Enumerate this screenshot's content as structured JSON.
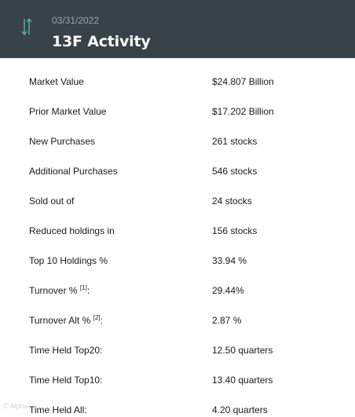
{
  "header": {
    "date": "03/31/2022",
    "title": "13F Activity",
    "icon": "vertical-arrows-icon",
    "icon_color": "#5fb3a0",
    "background": "#37424a"
  },
  "rows": [
    {
      "label": "Market Value",
      "footnote": "",
      "value": " $24.807 Billion"
    },
    {
      "label": "Prior Market Value",
      "footnote": "",
      "value": " $17.202 Billion"
    },
    {
      "label": "New Purchases",
      "footnote": "",
      "value": "261 stocks"
    },
    {
      "label": "Additional Purchases",
      "footnote": "",
      "value": "546 stocks"
    },
    {
      "label": "Sold out of",
      "footnote": "",
      "value": "24 stocks"
    },
    {
      "label": "Reduced holdings in",
      "footnote": "",
      "value": "156 stocks"
    },
    {
      "label": "Top 10 Holdings %",
      "footnote": "",
      "value": " 33.94 %"
    },
    {
      "label": "Turnover % ",
      "footnote": "[1]",
      "suffix": ":",
      "value": "29.44%"
    },
    {
      "label": "Turnover Alt % ",
      "footnote": "[2]",
      "suffix": ":",
      "value": " 2.87 %"
    },
    {
      "label": "Time Held Top20:",
      "footnote": "",
      "value": "12.50 quarters"
    },
    {
      "label": "Time Held Top10:",
      "footnote": "",
      "value": "13.40 quarters"
    },
    {
      "label": "Time Held All:",
      "footnote": "",
      "value": "4.20 quarters"
    }
  ],
  "watermark": "© Alpha"
}
